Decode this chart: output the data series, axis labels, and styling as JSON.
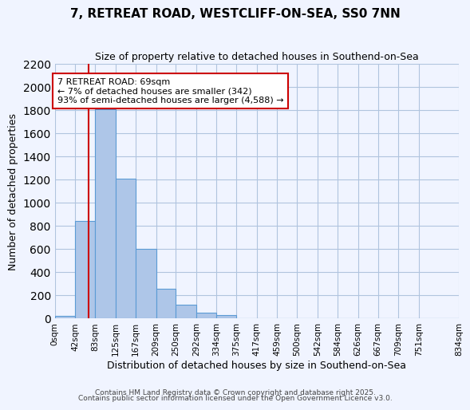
{
  "title1": "7, RETREAT ROAD, WESTCLIFF-ON-SEA, SS0 7NN",
  "title2": "Size of property relative to detached houses in Southend-on-Sea",
  "xlabel": "Distribution of detached houses by size in Southend-on-Sea",
  "ylabel": "Number of detached properties",
  "bar_values": [
    20,
    840,
    1810,
    1210,
    600,
    255,
    120,
    45,
    25,
    0,
    0,
    0,
    0,
    0,
    0,
    0,
    0,
    0,
    0
  ],
  "bin_edges": [
    0,
    42,
    83,
    125,
    167,
    209,
    250,
    292,
    334,
    375,
    417,
    459,
    500,
    542,
    584,
    626,
    667,
    709,
    751,
    834
  ],
  "tick_labels": [
    "0sqm",
    "42sqm",
    "83sqm",
    "125sqm",
    "167sqm",
    "209sqm",
    "250sqm",
    "292sqm",
    "334sqm",
    "375sqm",
    "417sqm",
    "459sqm",
    "500sqm",
    "542sqm",
    "584sqm",
    "626sqm",
    "667sqm",
    "709sqm",
    "751sqm",
    "834sqm"
  ],
  "bar_color": "#aec6e8",
  "bar_edge_color": "#5b9bd5",
  "grid_color": "#b0c4de",
  "background_color": "#f0f4ff",
  "vline_x": 69,
  "vline_color": "#cc0000",
  "annotation_text": "7 RETREAT ROAD: 69sqm\n← 7% of detached houses are smaller (342)\n93% of semi-detached houses are larger (4,588) →",
  "annotation_box_color": "#ffffff",
  "annotation_box_edge": "#cc0000",
  "ylim": [
    0,
    2200
  ],
  "yticks": [
    0,
    200,
    400,
    600,
    800,
    1000,
    1200,
    1400,
    1600,
    1800,
    2000,
    2200
  ],
  "footer1": "Contains HM Land Registry data © Crown copyright and database right 2025.",
  "footer2": "Contains public sector information licensed under the Open Government Licence v3.0."
}
